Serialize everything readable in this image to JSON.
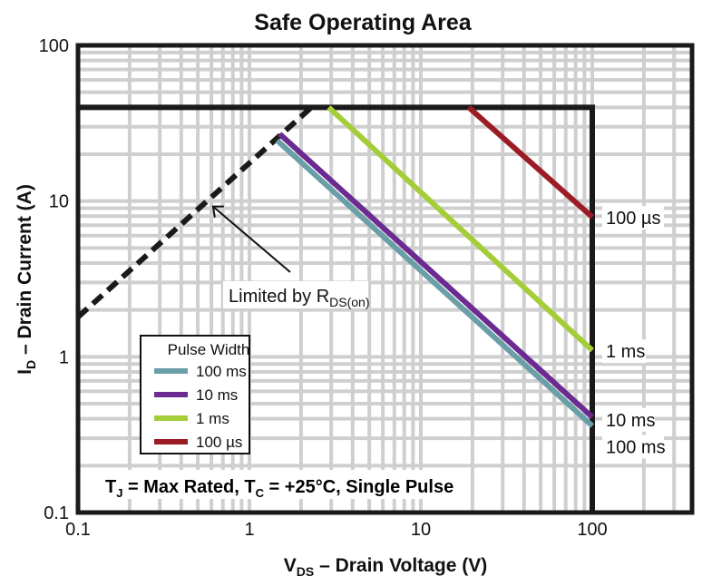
{
  "chart_data": {
    "type": "line",
    "title": "Safe Operating Area",
    "xlabel": {
      "main": "V",
      "sub": "DS",
      "rest": " – Drain Voltage (V)"
    },
    "ylabel": {
      "main": "I",
      "sub": "D",
      "rest": " – Drain Current (A)"
    },
    "xscale": "log",
    "yscale": "log",
    "xlim": [
      0.1,
      380
    ],
    "ylim": [
      0.1,
      100
    ],
    "xticks": [
      {
        "v": 0.1,
        "label": "0.1"
      },
      {
        "v": 1,
        "label": "1"
      },
      {
        "v": 10,
        "label": "10"
      },
      {
        "v": 100,
        "label": "100"
      }
    ],
    "yticks": [
      {
        "v": 0.1,
        "label": "0.1"
      },
      {
        "v": 1,
        "label": "1"
      },
      {
        "v": 10,
        "label": "10"
      },
      {
        "v": 100,
        "label": "100"
      }
    ],
    "grid": true,
    "boundary": {
      "name": "SOA limit",
      "x": [
        0.1,
        100,
        100
      ],
      "y": [
        40,
        40,
        0.1
      ]
    },
    "rds_limit": {
      "x": [
        0.1,
        2.3
      ],
      "y": [
        1.8,
        40
      ],
      "style": "dashed"
    },
    "series": [
      {
        "name": "100 ms",
        "color": "#6a9fa8",
        "x": [
          1.45,
          100
        ],
        "y": [
          24.5,
          0.36
        ],
        "end_label": "100 ms"
      },
      {
        "name": "10 ms",
        "color": "#6b2b90",
        "x": [
          1.5,
          100
        ],
        "y": [
          27,
          0.41
        ],
        "end_label": "10 ms"
      },
      {
        "name": "1 ms",
        "color": "#a4cd39",
        "x": [
          2.9,
          100
        ],
        "y": [
          40,
          1.1
        ],
        "end_label": "1 ms"
      },
      {
        "name": "100 µs",
        "color": "#9b1c24",
        "x": [
          19,
          100
        ],
        "y": [
          40,
          7.9
        ],
        "end_label": "100 µs"
      }
    ],
    "legend": {
      "title": "Pulse Width",
      "placement": "lower-left",
      "entries": [
        "100 ms",
        "10 ms",
        "1 ms",
        "100 µs"
      ]
    },
    "annotations": {
      "rds": {
        "pre": "Limited by R",
        "sub": "DS(on)",
        "arrow_to": {
          "x": 0.57,
          "y": 10
        }
      },
      "cond": {
        "a": "T",
        "a_sub": "J",
        "b": " = Max Rated, T",
        "b_sub": "C",
        "c": " = +25°C, Single Pulse"
      }
    }
  }
}
